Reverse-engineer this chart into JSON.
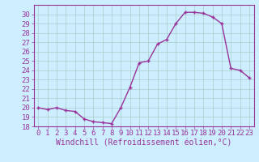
{
  "x": [
    0,
    1,
    2,
    3,
    4,
    5,
    6,
    7,
    8,
    9,
    10,
    11,
    12,
    13,
    14,
    15,
    16,
    17,
    18,
    19,
    20,
    21,
    22,
    23
  ],
  "y": [
    20.0,
    19.8,
    20.0,
    19.7,
    19.6,
    18.8,
    18.5,
    18.4,
    18.3,
    20.0,
    22.2,
    24.8,
    25.0,
    26.8,
    27.3,
    29.0,
    30.2,
    30.2,
    30.1,
    29.7,
    29.0,
    24.2,
    24.0,
    23.2
  ],
  "line_color": "#993399",
  "marker": "+",
  "marker_size": 3,
  "marker_lw": 1.0,
  "bg_color": "#cceeff",
  "grid_color": "#aacccc",
  "xlabel": "Windchill (Refroidissement éolien,°C)",
  "xlim": [
    -0.5,
    23.5
  ],
  "ylim": [
    18,
    31
  ],
  "yticks": [
    18,
    19,
    20,
    21,
    22,
    23,
    24,
    25,
    26,
    27,
    28,
    29,
    30
  ],
  "xticks": [
    0,
    1,
    2,
    3,
    4,
    5,
    6,
    7,
    8,
    9,
    10,
    11,
    12,
    13,
    14,
    15,
    16,
    17,
    18,
    19,
    20,
    21,
    22,
    23
  ],
  "label_fontsize": 7,
  "tick_fontsize": 6.5,
  "line_width": 1.0
}
